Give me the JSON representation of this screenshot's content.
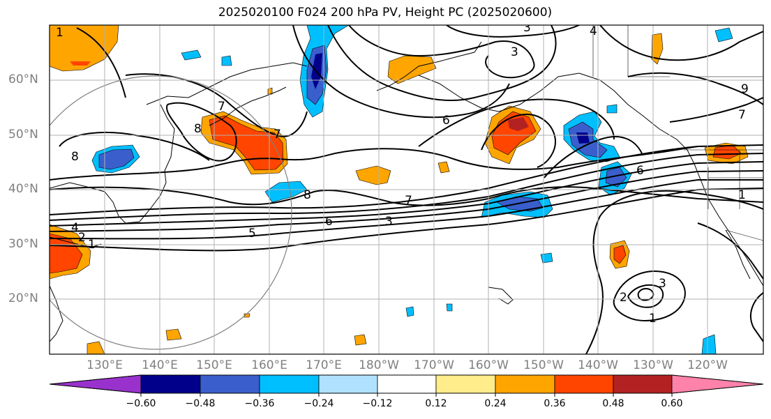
{
  "title": "2025020100 F024 200 hPa PV, Height PC (2025020600)",
  "map": {
    "lat_labels": [
      "60°N",
      "50°N",
      "40°N",
      "30°N",
      "20°N"
    ],
    "lon_labels": [
      "130°E",
      "140°E",
      "150°E",
      "160°E",
      "170°E",
      "180°W",
      "170°W",
      "160°W",
      "150°W",
      "140°W",
      "130°W",
      "120°W"
    ],
    "contour_labels": [
      "1",
      "7",
      "8",
      "3",
      "8",
      "6",
      "4",
      "2",
      "1",
      "5",
      "8",
      "6",
      "7",
      "3",
      "7",
      "6",
      "1",
      "4",
      "2",
      "1",
      "3",
      "9",
      "7",
      "3"
    ],
    "gridline_color": "#b0b0b0",
    "circle_color": "#808080"
  },
  "colorbar": {
    "colors": [
      "#9932cc",
      "#00008b",
      "#3a5fcd",
      "#00bfff",
      "#b0e2ff",
      "#ffffff",
      "#ffec8b",
      "#ffa500",
      "#ff4500",
      "#b22222",
      "#ff82ab"
    ],
    "tick_labels": [
      "−0.60",
      "−0.48",
      "−0.36",
      "−0.24",
      "−0.12",
      "0.12",
      "0.24",
      "0.36",
      "0.48",
      "0.60"
    ]
  }
}
